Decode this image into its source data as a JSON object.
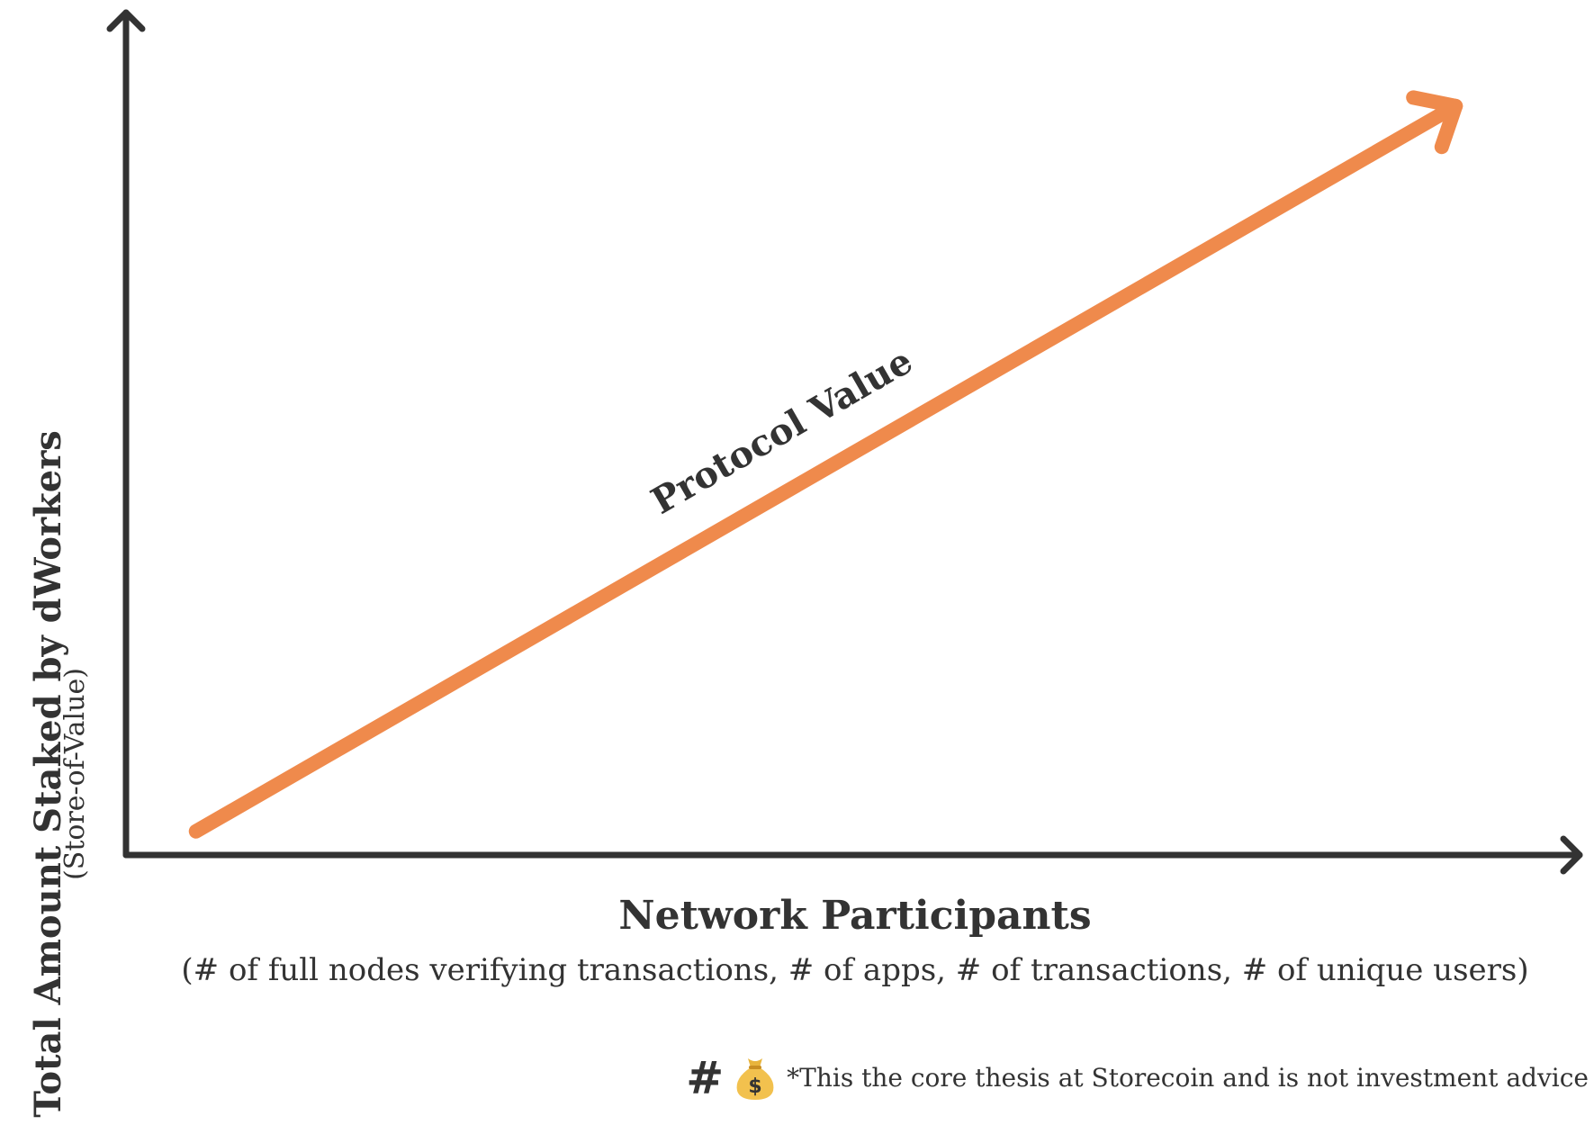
{
  "chart_data": {
    "type": "line",
    "series": [
      {
        "name": "Protocol Value",
        "x": [
          0.05,
          0.95
        ],
        "y": [
          0.03,
          0.95
        ]
      }
    ],
    "ylabel": "Total Amount Staked by dWorkers",
    "ylabel_sub": "(Store-of-Value)",
    "xlabel": "Network Participants",
    "xlabel_sub": "(# of full nodes verifying transactions, # of apps, # of transactions, # of unique users)",
    "xlim": [
      0,
      1
    ],
    "ylim": [
      0,
      1
    ],
    "grid": false,
    "ticks": false,
    "colors": {
      "series": "#EF8A4C",
      "axes": "#333333"
    }
  },
  "footer": {
    "hash": "#",
    "icon": "moneybag-icon",
    "note": "*This the core thesis at Storecoin and is not investment advice"
  }
}
